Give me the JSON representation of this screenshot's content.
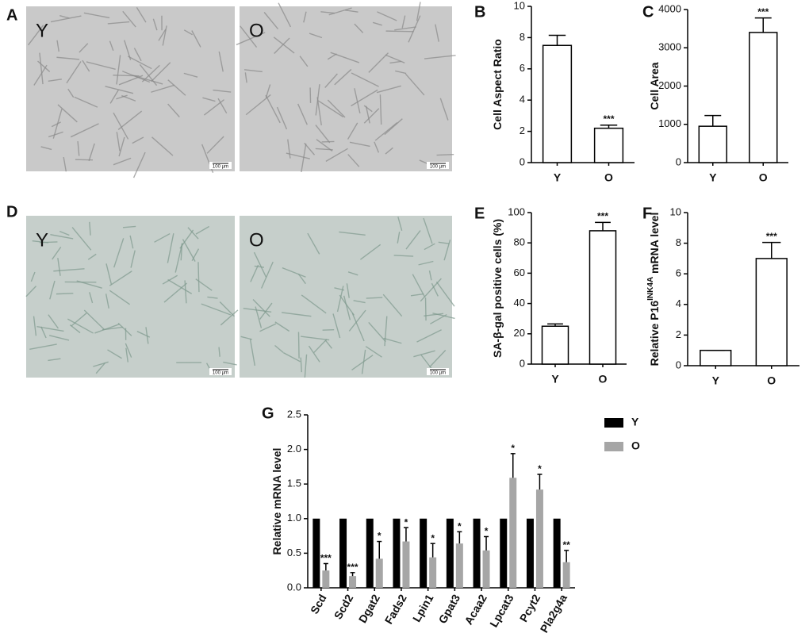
{
  "images": [
    {
      "label": "A",
      "tiles": [
        {
          "text": "Y",
          "scale": "100 µm"
        },
        {
          "text": "O",
          "scale": "100 µm"
        }
      ]
    },
    {
      "label": "D",
      "tiles": [
        {
          "text": "Y",
          "scale": "100 µm"
        },
        {
          "text": "O",
          "scale": "100 µm"
        }
      ]
    }
  ],
  "chart_data": [
    {
      "type": "bar",
      "label": "B",
      "ylabel": [
        "Cell Aspect Ratio"
      ],
      "categories": [
        "Y",
        "O"
      ],
      "values": [
        7.5,
        2.2
      ],
      "errors": [
        0.65,
        0.2
      ],
      "annotations": [
        null,
        "***"
      ],
      "color": "#ffffff",
      "edgecolor": "#000000",
      "ylim": [
        0,
        10
      ],
      "yticks": [
        0,
        2,
        4,
        6,
        8,
        10
      ]
    },
    {
      "type": "bar",
      "label": "C",
      "ylabel": [
        "Cell Area"
      ],
      "categories": [
        "Y",
        "O"
      ],
      "values": [
        950,
        3400
      ],
      "errors": [
        280,
        380
      ],
      "annotations": [
        null,
        "***"
      ],
      "color": "#ffffff",
      "edgecolor": "#000000",
      "ylim": [
        0,
        4000
      ],
      "yticks": [
        0,
        1000,
        2000,
        3000,
        4000
      ]
    },
    {
      "type": "bar",
      "label": "E",
      "ylabel": [
        "SA-β-gal positive cells (%)"
      ],
      "categories": [
        "Y",
        "O"
      ],
      "values": [
        25,
        88
      ],
      "errors": [
        1.5,
        5.5
      ],
      "annotations": [
        null,
        "***"
      ],
      "color": "#ffffff",
      "edgecolor": "#000000",
      "ylim": [
        0,
        100
      ],
      "yticks": [
        0,
        20,
        40,
        60,
        80,
        100
      ]
    },
    {
      "type": "bar",
      "label": "F",
      "ylabel": [
        "Relative P16",
        "INK4A",
        " mRNA level"
      ],
      "categories": [
        "Y",
        "O"
      ],
      "values": [
        1,
        7.0
      ],
      "errors": [
        0,
        1.05
      ],
      "annotations": [
        null,
        "***"
      ],
      "color": "#ffffff",
      "edgecolor": "#000000",
      "ylim": [
        0,
        10
      ],
      "yticks": [
        0,
        2,
        4,
        6,
        8,
        10
      ]
    },
    {
      "type": "grouped_bar",
      "label": "G",
      "ylabel": [
        "Relative mRNA level"
      ],
      "categories": [
        "Scd",
        "Scd2",
        "Dgat2",
        "Fads2",
        "Lpin1",
        "Gpat3",
        "Acaa2",
        "Lpcat3",
        "Pcyt2",
        "Pla2g4a"
      ],
      "series": [
        {
          "name": "Y",
          "color": "#000000",
          "values": [
            1,
            1,
            1,
            1,
            1,
            1,
            1,
            1,
            1,
            1
          ]
        },
        {
          "name": "O",
          "color": "#a6a6a6",
          "values": [
            0.25,
            0.17,
            0.42,
            0.67,
            0.44,
            0.64,
            0.54,
            1.59,
            1.42,
            0.37
          ],
          "errors": [
            0.1,
            0.05,
            0.25,
            0.2,
            0.2,
            0.17,
            0.2,
            0.35,
            0.22,
            0.17
          ],
          "annotations": [
            "***",
            "***",
            "*",
            "*",
            "*",
            "*",
            "*",
            "*",
            "*",
            "**"
          ]
        }
      ],
      "ylim": [
        0,
        2.5
      ],
      "yticks": [
        {
          "value": 0,
          "label": "0.0"
        },
        0.5,
        {
          "value": 1,
          "label": "1.0"
        },
        1.5,
        {
          "value": 2,
          "label": "2.0"
        },
        2.5
      ]
    }
  ]
}
